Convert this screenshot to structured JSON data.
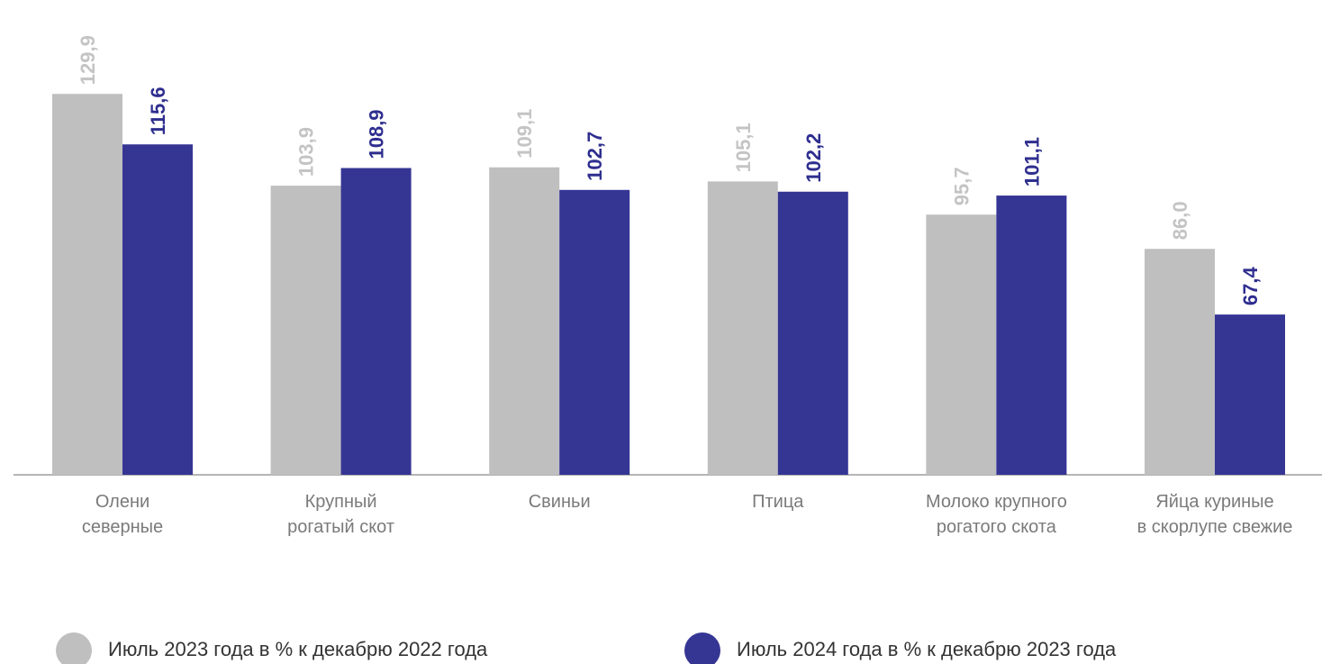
{
  "chart_data": {
    "type": "bar",
    "categories": [
      "Олени\nсеверные",
      "Крупный\nрогатый скот",
      "Свиньи",
      "Птица",
      "Молоко крупного\nрогатого скота",
      "Яйца куриные\nв скорлупе свежие"
    ],
    "series": [
      {
        "name": "Июль 2023 года в % к декабрю 2022 года",
        "color": "#bfbfbf",
        "label_color": "#c4c4c4",
        "values": [
          129.9,
          103.9,
          109.1,
          105.1,
          95.7,
          86.0
        ],
        "value_labels": [
          "129,9",
          "103,9",
          "109,1",
          "105,1",
          "95,7",
          "86,0"
        ]
      },
      {
        "name": "Июль 2024 года в % к декабрю 2023 года",
        "color": "#353594",
        "label_color": "#2e2e8f",
        "values": [
          115.6,
          108.9,
          102.7,
          102.2,
          101.1,
          67.4
        ],
        "value_labels": [
          "115,6",
          "108,9",
          "102,7",
          "102,2",
          "101,1",
          "67,4"
        ]
      }
    ],
    "ylim": [
      22,
      156.5
    ]
  }
}
